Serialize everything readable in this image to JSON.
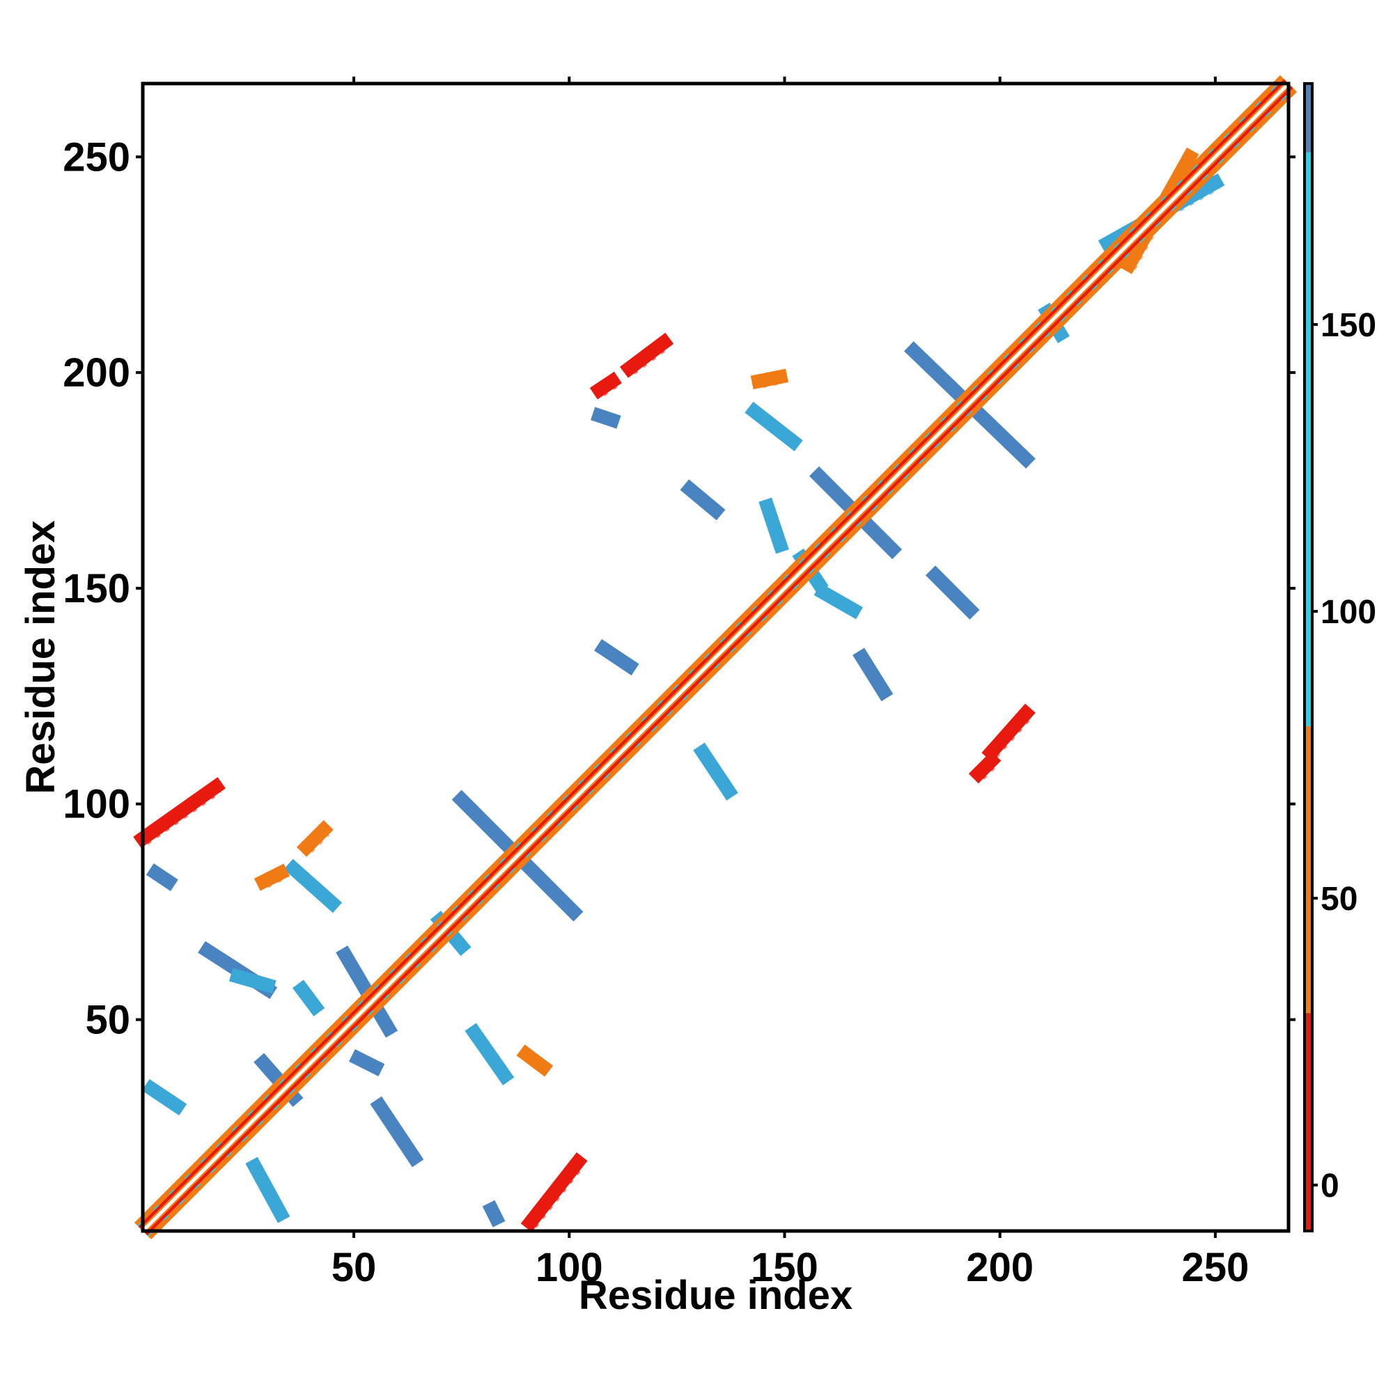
{
  "chart_data": {
    "type": "heatmap",
    "xlabel": "Residue index",
    "ylabel": "Residue index",
    "xlim": [
      1,
      267
    ],
    "ylim": [
      1,
      267
    ],
    "x_ticks": [
      50,
      100,
      150,
      200,
      250
    ],
    "y_ticks": [
      50,
      100,
      150,
      200,
      250
    ],
    "colorbar": {
      "ticks": [
        0,
        50,
        100,
        150
      ],
      "range": [
        -8,
        192
      ],
      "bins": [
        {
          "from": -8,
          "to": 30,
          "color": "#e8190f"
        },
        {
          "from": 30,
          "to": 80,
          "color": "#f07a14"
        },
        {
          "from": 80,
          "to": 180,
          "color": "#23d4e3"
        },
        {
          "from": 180,
          "to": 192,
          "color": "#4a84c0"
        }
      ]
    },
    "colors": {
      "red": "#e8190f",
      "orange": "#f07a14",
      "cyan": "#23d4e3",
      "blue": "#4a84c0",
      "steel": "#4a84c0",
      "light_blue": "#3aa7d6"
    },
    "diagonal": {
      "from": 1,
      "to": 267
    },
    "features": [
      {
        "from": [
          1,
          92
        ],
        "to": [
          18,
          104
        ],
        "color": "red"
      },
      {
        "from": [
          4,
          84
        ],
        "to": [
          7,
          82
        ],
        "color": "steel"
      },
      {
        "from": [
          36,
          85
        ],
        "to": [
          45,
          77
        ],
        "color": "light_blue"
      },
      {
        "from": [
          39,
          90
        ],
        "to": [
          43,
          94
        ],
        "color": "orange"
      },
      {
        "from": [
          29,
          82
        ],
        "to": [
          33,
          84
        ],
        "color": "orange"
      },
      {
        "from": [
          16,
          66
        ],
        "to": [
          30,
          57
        ],
        "color": "steel"
      },
      {
        "from": [
          38,
          57
        ],
        "to": [
          41,
          53
        ],
        "color": "light_blue"
      },
      {
        "from": [
          48,
          65
        ],
        "to": [
          58,
          48
        ],
        "color": "steel"
      },
      {
        "from": [
          23,
          60
        ],
        "to": [
          30,
          58
        ],
        "color": "light_blue"
      },
      {
        "from": [
          51,
          41
        ],
        "to": [
          55,
          39
        ],
        "color": "steel"
      },
      {
        "from": [
          29,
          40
        ],
        "to": [
          36,
          32
        ],
        "color": "steel"
      },
      {
        "from": [
          3,
          34
        ],
        "to": [
          9,
          30
        ],
        "color": "light_blue"
      },
      {
        "from": [
          56,
          30
        ],
        "to": [
          64,
          18
        ],
        "color": "steel"
      },
      {
        "from": [
          27,
          16
        ],
        "to": [
          33,
          5
        ],
        "color": "light_blue"
      },
      {
        "from": [
          78,
          47
        ],
        "to": [
          85,
          37
        ],
        "color": "light_blue"
      },
      {
        "from": [
          90,
          42
        ],
        "to": [
          94,
          39
        ],
        "color": "orange"
      },
      {
        "from": [
          91,
          3
        ],
        "to": [
          102,
          17
        ],
        "color": "red"
      },
      {
        "from": [
          82,
          6
        ],
        "to": [
          83,
          4
        ],
        "color": "steel"
      },
      {
        "from": [
          75,
          101
        ],
        "to": [
          101,
          75
        ],
        "color": "steel"
      },
      {
        "from": [
          70,
          73
        ],
        "to": [
          75,
          67
        ],
        "color": "light_blue"
      },
      {
        "from": [
          108,
          136
        ],
        "to": [
          114,
          132
        ],
        "color": "steel"
      },
      {
        "from": [
          131,
          112
        ],
        "to": [
          137,
          103
        ],
        "color": "light_blue"
      },
      {
        "from": [
          128,
          173
        ],
        "to": [
          134,
          168
        ],
        "color": "steel"
      },
      {
        "from": [
          143,
          191
        ],
        "to": [
          152,
          184
        ],
        "color": "light_blue"
      },
      {
        "from": [
          146,
          169
        ],
        "to": [
          149,
          160
        ],
        "color": "light_blue"
      },
      {
        "from": [
          158,
          176
        ],
        "to": [
          175,
          159
        ],
        "color": "steel"
      },
      {
        "from": [
          159,
          149
        ],
        "to": [
          166,
          145
        ],
        "color": "light_blue"
      },
      {
        "from": [
          180,
          205
        ],
        "to": [
          206,
          180
        ],
        "color": "steel"
      },
      {
        "from": [
          185,
          153
        ],
        "to": [
          193,
          145
        ],
        "color": "steel"
      },
      {
        "from": [
          168,
          134
        ],
        "to": [
          173,
          126
        ],
        "color": "steel"
      },
      {
        "from": [
          198,
          112
        ],
        "to": [
          206,
          121
        ],
        "color": "red"
      },
      {
        "from": [
          195,
          107
        ],
        "to": [
          198,
          110
        ],
        "color": "red"
      },
      {
        "from": [
          114,
          201
        ],
        "to": [
          122,
          207
        ],
        "color": "red"
      },
      {
        "from": [
          107,
          196
        ],
        "to": [
          110,
          198
        ],
        "color": "red"
      },
      {
        "from": [
          107,
          190
        ],
        "to": [
          110,
          189
        ],
        "color": "steel"
      },
      {
        "from": [
          144,
          198
        ],
        "to": [
          149,
          199
        ],
        "color": "orange"
      },
      {
        "from": [
          154,
          157
        ],
        "to": [
          158,
          151
        ],
        "color": "light_blue"
      },
      {
        "from": [
          211,
          214
        ],
        "to": [
          214,
          209
        ],
        "color": "light_blue"
      },
      {
        "from": [
          225,
          230
        ],
        "to": [
          250,
          244
        ],
        "color": "light_blue"
      },
      {
        "from": [
          230,
          225
        ],
        "to": [
          244,
          250
        ],
        "color": "orange"
      }
    ]
  }
}
